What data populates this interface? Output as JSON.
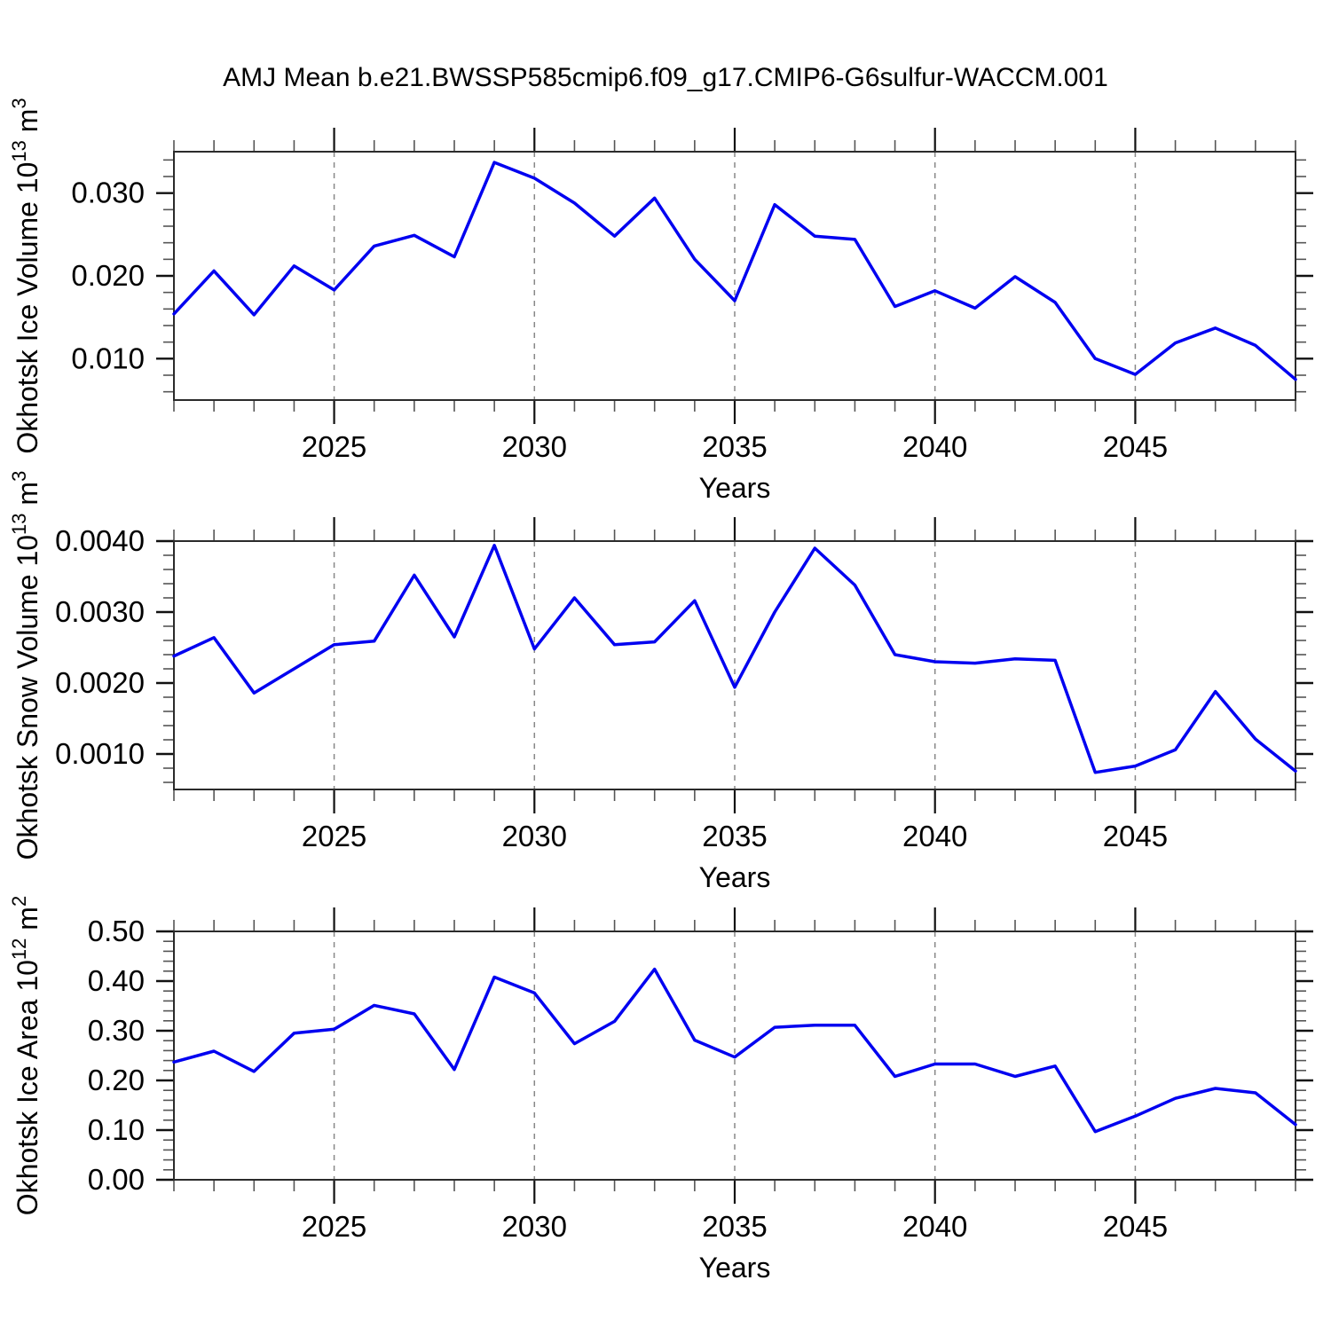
{
  "title": "AMJ Mean b.e21.BWSSP585cmip6.f09_g17.CMIP6-G6sulfur-WACCM.001",
  "style": {
    "line_color": "#0000f0",
    "frame_color": "#2b2b2b",
    "major_tick_color": "#111111",
    "minor_tick_color": "#555555",
    "grid_color": "#888888",
    "background": "#ffffff"
  },
  "chart_data": [
    {
      "type": "line",
      "ylabel": "Okhotsk Ice Volume 10^13 m^3",
      "ylabel_segments": [
        {
          "t": "Okhotsk Ice Volume 10",
          "sup": false
        },
        {
          "t": "13",
          "sup": true
        },
        {
          "t": " m",
          "sup": false
        },
        {
          "t": "3",
          "sup": true
        }
      ],
      "xlabel": "Years",
      "x": [
        2021,
        2022,
        2023,
        2024,
        2025,
        2026,
        2027,
        2028,
        2029,
        2030,
        2031,
        2032,
        2033,
        2034,
        2035,
        2036,
        2037,
        2038,
        2039,
        2040,
        2041,
        2042,
        2043,
        2044,
        2045,
        2046,
        2047,
        2048,
        2049
      ],
      "series": [
        {
          "name": "Okhotsk Ice Volume",
          "values": [
            0.0154,
            0.0206,
            0.0153,
            0.0212,
            0.0183,
            0.0236,
            0.0249,
            0.0223,
            0.0337,
            0.0318,
            0.0288,
            0.0248,
            0.0294,
            0.022,
            0.017,
            0.0286,
            0.0248,
            0.0244,
            0.0163,
            0.0182,
            0.0161,
            0.0199,
            0.0168,
            0.01,
            0.0081,
            0.0119,
            0.0137,
            0.0116,
            0.0075
          ]
        }
      ],
      "xlim": [
        2021,
        2049
      ],
      "ylim": [
        0.005,
        0.035
      ],
      "yticks_major": [
        0.01,
        0.02,
        0.03
      ],
      "ytick_labels": [
        "0.010",
        "0.020",
        "0.030"
      ],
      "ytick_minor_step": 0.002,
      "xticks_major": [
        2025,
        2030,
        2035,
        2040,
        2045
      ],
      "xtick_labels": [
        "2025",
        "2030",
        "2035",
        "2040",
        "2045"
      ],
      "xtick_minor_step": 1,
      "grid": "vertical-dashed-at-major-x",
      "legend": "none"
    },
    {
      "type": "line",
      "ylabel": "Okhotsk Snow Volume 10^13 m^3",
      "ylabel_segments": [
        {
          "t": "Okhotsk Snow Volume 10",
          "sup": false
        },
        {
          "t": "13",
          "sup": true
        },
        {
          "t": " m",
          "sup": false
        },
        {
          "t": "3",
          "sup": true
        }
      ],
      "xlabel": "Years",
      "x": [
        2021,
        2022,
        2023,
        2024,
        2025,
        2026,
        2027,
        2028,
        2029,
        2030,
        2031,
        2032,
        2033,
        2034,
        2035,
        2036,
        2037,
        2038,
        2039,
        2040,
        2041,
        2042,
        2043,
        2044,
        2045,
        2046,
        2047,
        2048,
        2049
      ],
      "series": [
        {
          "name": "Okhotsk Snow Volume",
          "values": [
            0.00238,
            0.00264,
            0.00186,
            0.0022,
            0.00254,
            0.00259,
            0.00352,
            0.00265,
            0.00394,
            0.00248,
            0.0032,
            0.00254,
            0.00258,
            0.00316,
            0.00194,
            0.003,
            0.0039,
            0.00338,
            0.0024,
            0.0023,
            0.00228,
            0.00234,
            0.00232,
            0.00074,
            0.00083,
            0.00106,
            0.00188,
            0.00121,
            0.00076
          ]
        }
      ],
      "xlim": [
        2021,
        2049
      ],
      "ylim": [
        0.0005,
        0.004
      ],
      "yticks_major": [
        0.001,
        0.002,
        0.003,
        0.004
      ],
      "ytick_labels": [
        "0.0010",
        "0.0020",
        "0.0030",
        "0.0040"
      ],
      "ytick_minor_step": 0.0002,
      "xticks_major": [
        2025,
        2030,
        2035,
        2040,
        2045
      ],
      "xtick_labels": [
        "2025",
        "2030",
        "2035",
        "2040",
        "2045"
      ],
      "xtick_minor_step": 1,
      "grid": "vertical-dashed-at-major-x",
      "legend": "none"
    },
    {
      "type": "line",
      "ylabel": "Okhotsk Ice Area 10^12 m^2",
      "ylabel_segments": [
        {
          "t": "Okhotsk Ice Area 10",
          "sup": false
        },
        {
          "t": "12",
          "sup": true
        },
        {
          "t": " m",
          "sup": false
        },
        {
          "t": "2",
          "sup": true
        }
      ],
      "xlabel": "Years",
      "x": [
        2021,
        2022,
        2023,
        2024,
        2025,
        2026,
        2027,
        2028,
        2029,
        2030,
        2031,
        2032,
        2033,
        2034,
        2035,
        2036,
        2037,
        2038,
        2039,
        2040,
        2041,
        2042,
        2043,
        2044,
        2045,
        2046,
        2047,
        2048,
        2049
      ],
      "series": [
        {
          "name": "Okhotsk Ice Area",
          "values": [
            0.237,
            0.259,
            0.218,
            0.295,
            0.303,
            0.351,
            0.334,
            0.222,
            0.408,
            0.376,
            0.274,
            0.319,
            0.424,
            0.281,
            0.247,
            0.307,
            0.311,
            0.311,
            0.208,
            0.233,
            0.233,
            0.208,
            0.229,
            0.097,
            0.128,
            0.164,
            0.184,
            0.175,
            0.111
          ]
        }
      ],
      "xlim": [
        2021,
        2049
      ],
      "ylim": [
        0.0,
        0.5
      ],
      "yticks_major": [
        0.0,
        0.1,
        0.2,
        0.3,
        0.4,
        0.5
      ],
      "ytick_labels": [
        "0.00",
        "0.10",
        "0.20",
        "0.30",
        "0.40",
        "0.50"
      ],
      "ytick_minor_step": 0.02,
      "xticks_major": [
        2025,
        2030,
        2035,
        2040,
        2045
      ],
      "xtick_labels": [
        "2025",
        "2030",
        "2035",
        "2040",
        "2045"
      ],
      "xtick_minor_step": 1,
      "grid": "vertical-dashed-at-major-x",
      "legend": "none"
    }
  ]
}
